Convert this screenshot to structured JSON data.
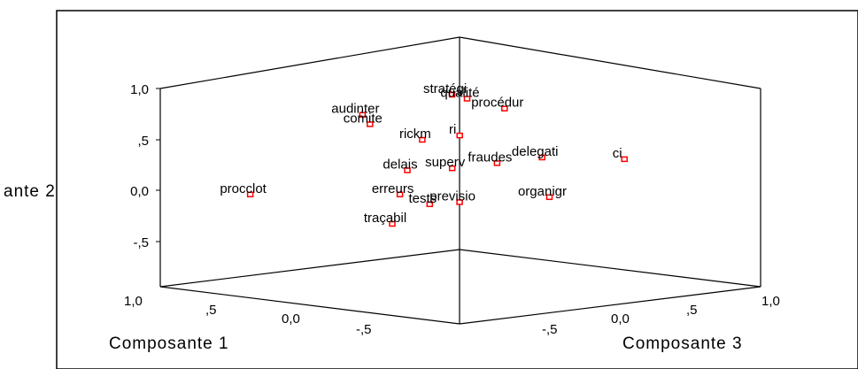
{
  "chart_data": {
    "type": "scatter",
    "projection": "3d",
    "xlabel": "Composante 1",
    "ylabel": "ante 2",
    "zlabel": "Composante 3",
    "y_ticks": [
      "1,0",
      ",5",
      "0,0",
      "-,5"
    ],
    "y_tick_values": [
      1.0,
      0.5,
      0.0,
      -0.5
    ],
    "x_ticks": [
      "1,0",
      ",5",
      "0,0",
      "-,5"
    ],
    "x_tick_values": [
      1.0,
      0.5,
      0.0,
      -0.5
    ],
    "z_ticks": [
      "-,5",
      "0,0",
      ",5",
      "1,0"
    ],
    "z_tick_values": [
      -0.5,
      0.0,
      0.5,
      1.0
    ],
    "marker_color": "#ff0000",
    "points": [
      {
        "label": "stratégi",
        "x": 0.05,
        "y": 0.97,
        "z": 0.0
      },
      {
        "label": "qualité",
        "x": 0.0,
        "y": 0.93,
        "z": 0.05
      },
      {
        "label": "procédur",
        "x": -0.1,
        "y": 0.82,
        "z": 0.2
      },
      {
        "label": "audinter",
        "x": 0.45,
        "y": 0.72,
        "z": -0.2
      },
      {
        "label": "comite",
        "x": 0.4,
        "y": 0.64,
        "z": -0.2
      },
      {
        "label": "ri",
        "x": 0.1,
        "y": 0.53,
        "z": 0.1
      },
      {
        "label": "rickm",
        "x": 0.2,
        "y": 0.5,
        "z": -0.05
      },
      {
        "label": "fraudes",
        "x": -0.05,
        "y": 0.27,
        "z": 0.2
      },
      {
        "label": "delegati",
        "x": -0.15,
        "y": 0.3,
        "z": 0.4
      },
      {
        "label": "ci",
        "x": -0.4,
        "y": 0.27,
        "z": 0.7
      },
      {
        "label": "delais",
        "x": 0.25,
        "y": 0.2,
        "z": -0.1
      },
      {
        "label": "superv",
        "x": 0.1,
        "y": 0.22,
        "z": 0.05
      },
      {
        "label": "procclot",
        "x": 0.8,
        "y": -0.05,
        "z": -0.6
      },
      {
        "label": "erreurs",
        "x": 0.3,
        "y": -0.05,
        "z": -0.1
      },
      {
        "label": "organigr",
        "x": -0.25,
        "y": -0.05,
        "z": 0.35
      },
      {
        "label": "tests",
        "x": 0.15,
        "y": -0.12,
        "z": -0.05
      },
      {
        "label": "previsio",
        "x": 0.05,
        "y": -0.1,
        "z": 0.05
      },
      {
        "label": "traçabil",
        "x": 0.25,
        "y": -0.3,
        "z": -0.2
      }
    ]
  }
}
